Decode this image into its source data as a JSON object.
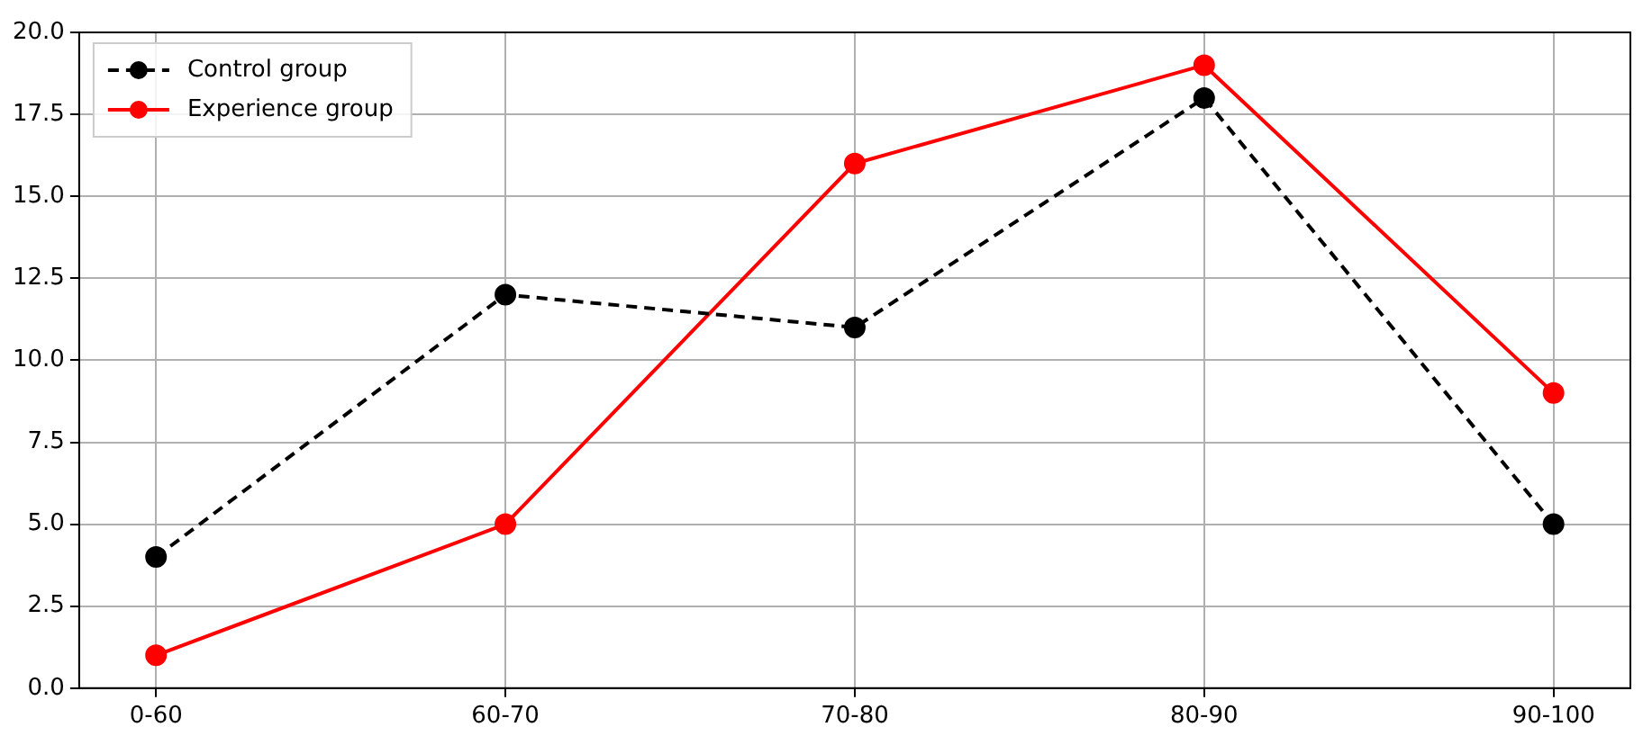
{
  "chart_data": {
    "type": "line",
    "categories": [
      "0-60",
      "60-70",
      "70-80",
      "80-90",
      "90-100"
    ],
    "series": [
      {
        "name": "Control group",
        "color": "#000000",
        "values": [
          4,
          12,
          11,
          18,
          5
        ],
        "line_style": "dashed"
      },
      {
        "name": "Experience group",
        "color": "#ff0000",
        "values": [
          1,
          5,
          16,
          19,
          9
        ],
        "line_style": "solid"
      }
    ],
    "ylim": [
      0,
      20
    ],
    "yticks": [
      {
        "value": 0,
        "label": "0.0"
      },
      {
        "value": 2.5,
        "label": "2.5"
      },
      {
        "value": 5,
        "label": "5.0"
      },
      {
        "value": 7.5,
        "label": "7.5"
      },
      {
        "value": 10,
        "label": "10.0"
      },
      {
        "value": 12.5,
        "label": "12.5"
      },
      {
        "value": 15,
        "label": "15.0"
      },
      {
        "value": 17.5,
        "label": "17.5"
      },
      {
        "value": 20,
        "label": "20.0"
      }
    ],
    "grid": true,
    "legend": "top left",
    "marker": "circle"
  }
}
